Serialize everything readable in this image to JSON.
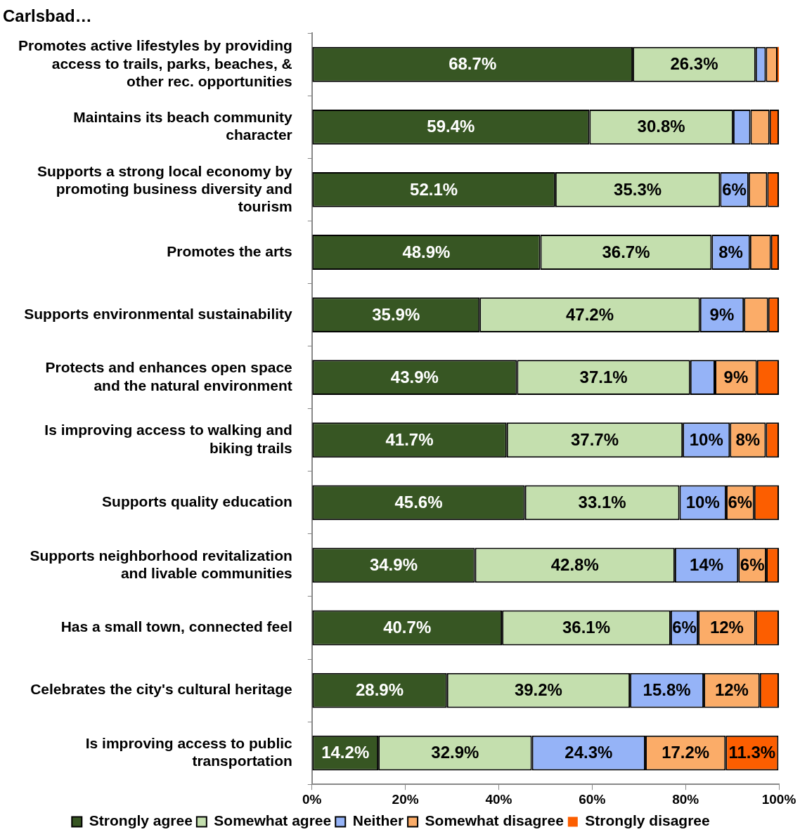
{
  "chart_data": {
    "type": "bar",
    "orientation": "horizontal",
    "stacked": true,
    "title": "Carlsbad…",
    "categories": [
      "Promotes active lifestyles by providing access to trails, parks, beaches, & other rec. opportunities",
      "Maintains its beach community character",
      "Supports a strong local economy by promoting business diversity and tourism",
      "Promotes the arts",
      "Supports environmental sustainability",
      "Protects and enhances open space and the natural environment",
      "Is improving access to walking and biking trails",
      "Supports quality education",
      "Supports neighborhood revitalization and livable communities",
      "Has a small town, connected feel",
      "Celebrates the city's cultural heritage",
      "Is improving access to public transportation"
    ],
    "series": [
      {
        "name": "Strongly agree",
        "color": "#375623",
        "values": [
          68.7,
          59.4,
          52.1,
          48.9,
          35.9,
          43.9,
          41.7,
          45.6,
          34.9,
          40.7,
          28.9,
          14.2
        ],
        "value_labels": [
          "68.7%",
          "59.4%",
          "52.1%",
          "48.9%",
          "35.9%",
          "43.9%",
          "41.7%",
          "45.6%",
          "34.9%",
          "40.7%",
          "28.9%",
          "14.2%"
        ]
      },
      {
        "name": "Somewhat agree",
        "color": "#c4dfae",
        "values": [
          26.3,
          30.8,
          35.3,
          36.7,
          47.2,
          37.1,
          37.7,
          33.1,
          42.8,
          36.1,
          39.2,
          32.9
        ],
        "value_labels": [
          "26.3%",
          "30.8%",
          "35.3%",
          "36.7%",
          "47.2%",
          "37.1%",
          "37.7%",
          "33.1%",
          "42.8%",
          "36.1%",
          "39.2%",
          "32.9%"
        ]
      },
      {
        "name": "Neither",
        "color": "#95b3f7",
        "values": [
          2.2,
          3.7,
          6.1,
          8.2,
          9.4,
          5.3,
          10.1,
          10.0,
          13.6,
          5.9,
          15.8,
          24.3
        ],
        "value_labels": [
          null,
          null,
          "6%",
          "8%",
          "9%",
          null,
          "10%",
          "10%",
          "14%",
          "6%",
          "15.8%",
          "24.3%"
        ]
      },
      {
        "name": "Somewhat disagree",
        "color": "#fbac68",
        "values": [
          2.5,
          4.1,
          4.0,
          4.5,
          5.2,
          9.0,
          7.7,
          6.0,
          6.0,
          12.3,
          12,
          17.2
        ],
        "value_labels": [
          null,
          null,
          null,
          null,
          null,
          "9%",
          "8%",
          "6%",
          "6%",
          "12%",
          "12%",
          "17.2%"
        ]
      },
      {
        "name": "Strongly disagree",
        "color": "#fc5e00",
        "values": [
          0.3,
          2.0,
          2.5,
          1.7,
          2.3,
          4.7,
          2.8,
          5.3,
          2.7,
          5.0,
          4.1,
          11.3
        ],
        "value_labels": [
          null,
          null,
          null,
          null,
          null,
          null,
          null,
          null,
          null,
          null,
          null,
          "11.3%"
        ]
      }
    ],
    "xlim": [
      0,
      100
    ],
    "xticks": [
      {
        "value": 0,
        "label": "0%"
      },
      {
        "value": 20,
        "label": "20%"
      },
      {
        "value": 40,
        "label": "40%"
      },
      {
        "value": 60,
        "label": "60%"
      },
      {
        "value": 80,
        "label": "80%"
      },
      {
        "value": 100,
        "label": "100%"
      }
    ],
    "legend": "bottom",
    "grid": false
  }
}
